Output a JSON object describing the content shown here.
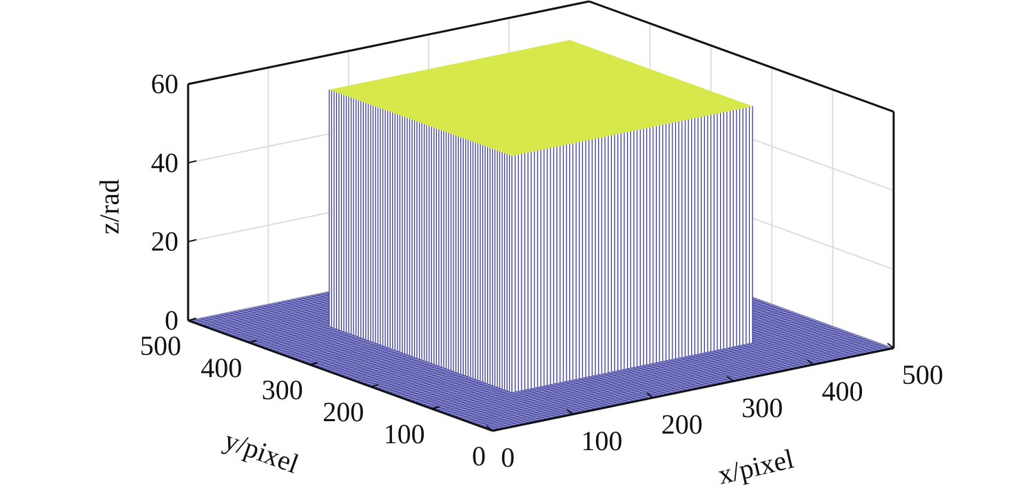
{
  "chart_data": {
    "type": "surface3d",
    "title": "",
    "xlabel": "x/pixel",
    "ylabel": "y/pixel",
    "zlabel": "z/rad",
    "xlim": [
      0,
      500
    ],
    "ylim": [
      0,
      500
    ],
    "zlim": [
      0,
      60
    ],
    "xticks": [
      "0",
      "100",
      "200",
      "300",
      "400",
      "500"
    ],
    "yticks": [
      "0",
      "100",
      "200",
      "300",
      "400",
      "500"
    ],
    "zticks": [
      "0",
      "20",
      "40",
      "60"
    ],
    "grid": true,
    "surface": {
      "description_values": {
        "block_x_range": [
          100,
          400
        ],
        "block_y_range": [
          100,
          400
        ],
        "block_height": 60,
        "background_height": 0
      },
      "colors": {
        "top": "#d6e84a",
        "floor": "#4848a6",
        "side_lines": "#3a3a9a"
      }
    }
  }
}
